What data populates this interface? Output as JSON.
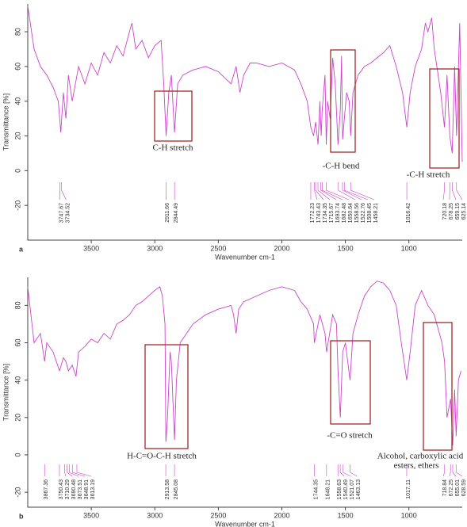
{
  "chart_data": [
    {
      "type": "line",
      "panel": "a",
      "xlabel": "Wavenumber cm-1",
      "ylabel": "Transmittance [%]",
      "color": "#cc44cc",
      "xlim": [
        4000,
        580
      ],
      "ylim": [
        -40,
        96
      ],
      "xticks": [
        3500,
        3000,
        2500,
        2000,
        1500,
        1000
      ],
      "yticks": [
        -20,
        0,
        20,
        40,
        60,
        80
      ],
      "x": [
        4000,
        3950,
        3900,
        3850,
        3800,
        3760,
        3740,
        3720,
        3700,
        3680,
        3650,
        3600,
        3550,
        3500,
        3450,
        3400,
        3350,
        3300,
        3250,
        3200,
        3180,
        3150,
        3100,
        3050,
        3000,
        2950,
        2930,
        2911,
        2890,
        2870,
        2845,
        2820,
        2780,
        2700,
        2600,
        2500,
        2400,
        2360,
        2330,
        2300,
        2250,
        2200,
        2100,
        2000,
        1900,
        1850,
        1800,
        1772,
        1750,
        1734,
        1715,
        1700,
        1690,
        1682,
        1660,
        1650,
        1640,
        1620,
        1600,
        1580,
        1558,
        1540,
        1530,
        1522,
        1508,
        1490,
        1470,
        1458,
        1440,
        1400,
        1350,
        1300,
        1250,
        1200,
        1150,
        1100,
        1050,
        1016,
        990,
        950,
        900,
        870,
        850,
        820,
        800,
        770,
        750,
        720,
        700,
        678,
        659,
        640,
        625,
        600,
        580
      ],
      "values": [
        95,
        70,
        60,
        55,
        48,
        40,
        22,
        45,
        30,
        55,
        40,
        60,
        50,
        62,
        55,
        68,
        62,
        72,
        66,
        80,
        85,
        70,
        75,
        65,
        72,
        75,
        50,
        20,
        45,
        55,
        22,
        50,
        55,
        58,
        60,
        57,
        50,
        60,
        45,
        55,
        62,
        62,
        60,
        62,
        58,
        50,
        40,
        25,
        20,
        28,
        15,
        40,
        20,
        35,
        55,
        15,
        40,
        30,
        65,
        50,
        15,
        35,
        66,
        18,
        30,
        45,
        40,
        20,
        45,
        55,
        60,
        62,
        65,
        68,
        72,
        60,
        45,
        25,
        45,
        60,
        70,
        85,
        80,
        88,
        70,
        55,
        45,
        25,
        55,
        20,
        10,
        60,
        20,
        85,
        5
      ],
      "peaks": [
        3747.67,
        3734.52,
        2911.66,
        2844.49,
        1772.23,
        1743.43,
        1734.35,
        1715.67,
        1693.74,
        1682.48,
        1650.64,
        1558.56,
        1522.76,
        1508.45,
        1458.21,
        1016.42,
        720.18,
        678.25,
        659.15,
        625.14
      ],
      "annotations": [
        "C-H stretch",
        "-C-H bend",
        "-C-H stretch"
      ]
    },
    {
      "type": "line",
      "panel": "b",
      "xlabel": "Wavenumber cm-1",
      "ylabel": "Transmittance [%]",
      "color": "#cc44cc",
      "xlim": [
        4000,
        580
      ],
      "ylim": [
        -28,
        95
      ],
      "xticks": [
        3500,
        3000,
        2500,
        2000,
        1500,
        1000
      ],
      "yticks": [
        -20,
        0,
        20,
        40,
        60,
        80
      ],
      "x": [
        4000,
        3950,
        3900,
        3867,
        3850,
        3800,
        3750,
        3720,
        3700,
        3680,
        3650,
        3620,
        3600,
        3550,
        3500,
        3450,
        3400,
        3350,
        3300,
        3250,
        3200,
        3150,
        3100,
        3050,
        3000,
        2960,
        2940,
        2920,
        2913,
        2900,
        2880,
        2870,
        2845,
        2830,
        2800,
        2750,
        2700,
        2600,
        2500,
        2400,
        2380,
        2360,
        2340,
        2300,
        2200,
        2100,
        2000,
        1900,
        1850,
        1800,
        1750,
        1744,
        1700,
        1660,
        1648,
        1600,
        1570,
        1558,
        1540,
        1521,
        1500,
        1463,
        1440,
        1400,
        1350,
        1300,
        1250,
        1200,
        1150,
        1100,
        1060,
        1017,
        990,
        950,
        900,
        850,
        800,
        760,
        740,
        719,
        700,
        672,
        655,
        640,
        628,
        610,
        590
      ],
      "values": [
        90,
        60,
        65,
        50,
        60,
        55,
        45,
        52,
        50,
        45,
        48,
        42,
        55,
        58,
        62,
        60,
        65,
        62,
        70,
        72,
        75,
        80,
        82,
        85,
        88,
        90,
        85,
        70,
        7,
        20,
        55,
        50,
        8,
        40,
        60,
        65,
        70,
        75,
        78,
        80,
        75,
        65,
        78,
        82,
        85,
        88,
        90,
        88,
        82,
        78,
        70,
        60,
        75,
        65,
        55,
        75,
        70,
        45,
        20,
        55,
        60,
        40,
        65,
        75,
        85,
        90,
        93,
        92,
        88,
        80,
        60,
        40,
        55,
        80,
        88,
        80,
        75,
        65,
        60,
        50,
        20,
        30,
        5,
        35,
        10,
        40,
        45
      ],
      "peaks": [
        3867.36,
        3750.43,
        3710.29,
        3690.48,
        3673.51,
        3648.91,
        3613.19,
        2913.58,
        2845.08,
        1744.35,
        1648.21,
        1558.63,
        1540.49,
        1521.07,
        1463.13,
        1017.11,
        718.84,
        672.25,
        655.01,
        628.59
      ],
      "annotations": [
        "H-C=O-C-H stretch",
        "-C=O stretch",
        "Alcohol, carboxylic acid",
        "esters, ethers"
      ]
    }
  ]
}
